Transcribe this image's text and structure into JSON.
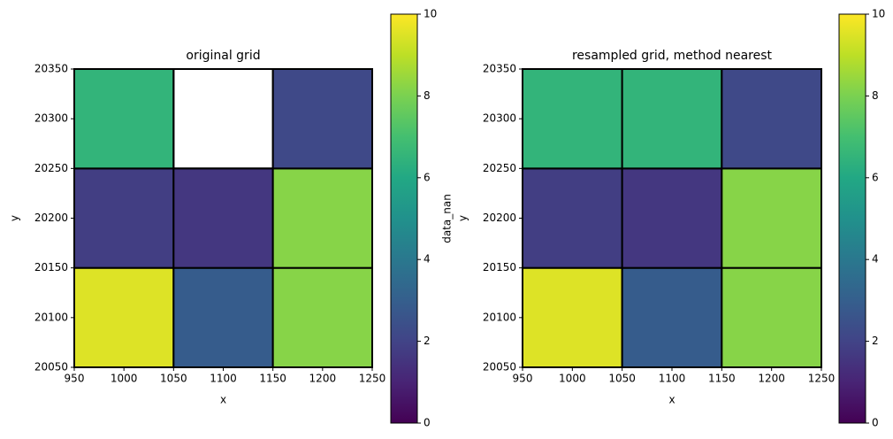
{
  "chart_data": [
    {
      "type": "heatmap",
      "title": "original grid",
      "x_label": "x",
      "y_label": "y",
      "x": [
        1000,
        1100,
        1200
      ],
      "y": [
        20100,
        20200,
        20300
      ],
      "values": [
        [
          9.5,
          2.9,
          8.2
        ],
        [
          1.8,
          1.6,
          8.2
        ],
        [
          6.5,
          null,
          2.2
        ]
      ],
      "xlim": [
        950,
        1250
      ],
      "ylim": [
        20050,
        20350
      ],
      "xticks": [
        950,
        1000,
        1050,
        1100,
        1150,
        1200,
        1250
      ],
      "yticks": [
        20050,
        20100,
        20150,
        20200,
        20250,
        20300,
        20350
      ],
      "colormap": "viridis",
      "edgecolor": "#000000",
      "clim": [
        0,
        10
      ],
      "cticks": [
        0,
        2,
        4,
        6,
        8,
        10
      ],
      "colorbar_label": "data_nan"
    },
    {
      "type": "heatmap",
      "title": "resampled grid, method nearest",
      "x_label": "x",
      "y_label": "y",
      "x": [
        1000,
        1100,
        1200
      ],
      "y": [
        20100,
        20200,
        20300
      ],
      "values": [
        [
          9.5,
          2.9,
          8.2
        ],
        [
          1.8,
          1.6,
          8.2
        ],
        [
          6.5,
          6.5,
          2.2
        ]
      ],
      "xlim": [
        950,
        1250
      ],
      "ylim": [
        20050,
        20350
      ],
      "xticks": [
        950,
        1000,
        1050,
        1100,
        1150,
        1200,
        1250
      ],
      "yticks": [
        20050,
        20100,
        20150,
        20200,
        20250,
        20300,
        20350
      ],
      "colormap": "viridis",
      "edgecolor": "#000000",
      "clim": [
        0,
        10
      ],
      "cticks": [
        0,
        2,
        4,
        6,
        8,
        10
      ]
    }
  ]
}
